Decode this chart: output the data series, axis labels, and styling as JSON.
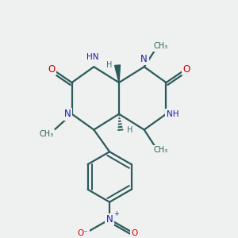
{
  "bg_color": "#eff1f1",
  "bond_color": "#2d5a5a",
  "atom_N": "#1a1ab5",
  "atom_O": "#cc0000",
  "atom_H": "#3a7070",
  "atom_C": "#2d5a5a",
  "bond_width": 1.6,
  "figsize": [
    3.0,
    3.0
  ],
  "dpi": 100,
  "xlim": [
    0,
    300
  ],
  "ylim": [
    0,
    300
  ]
}
